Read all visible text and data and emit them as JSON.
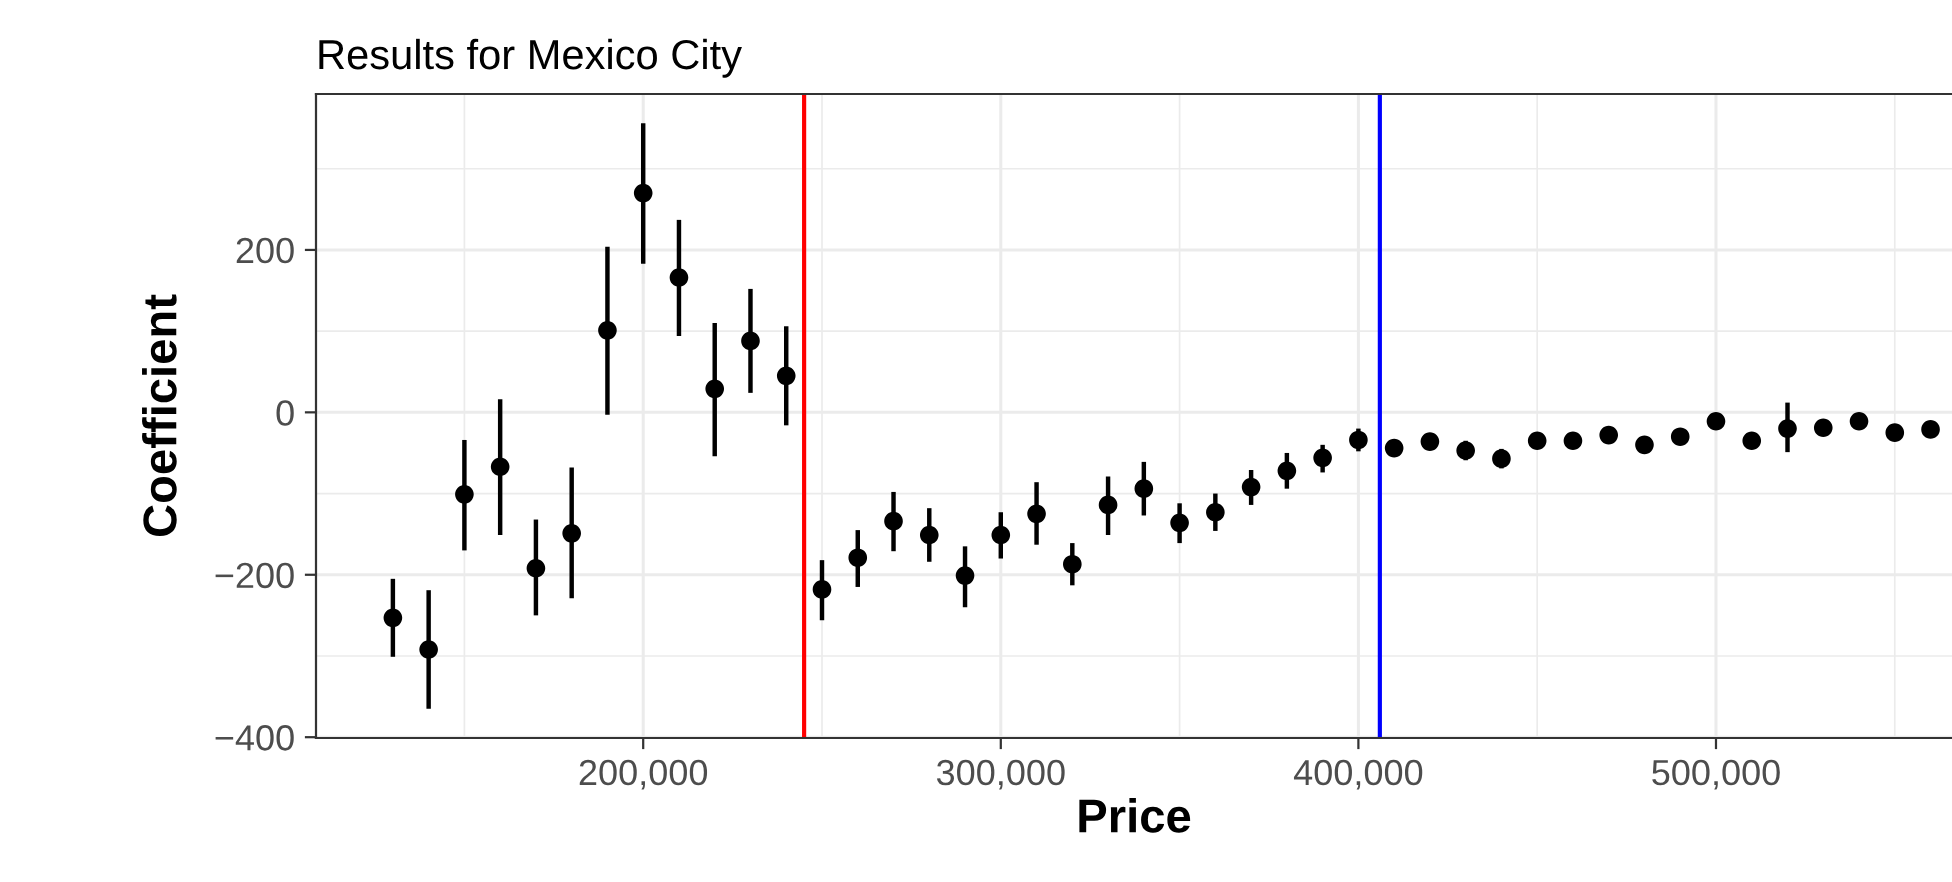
{
  "chart_data": {
    "type": "scatter",
    "title": "Results for Mexico City",
    "xlabel": "Price",
    "ylabel": "Coefficient",
    "x": [
      130000,
      140000,
      150000,
      160000,
      170000,
      180000,
      190000,
      200000,
      210000,
      220000,
      230000,
      240000,
      250000,
      260000,
      270000,
      280000,
      290000,
      300000,
      310000,
      320000,
      330000,
      340000,
      350000,
      360000,
      370000,
      380000,
      390000,
      400000,
      410000,
      420000,
      430000,
      440000,
      450000,
      460000,
      470000,
      480000,
      490000,
      500000,
      510000,
      520000,
      530000,
      540000,
      550000,
      560000
    ],
    "series": [
      {
        "color": "#000000",
        "values": [
          -253,
          -292,
          -101,
          -67,
          -192,
          -149,
          101,
          270,
          166,
          29,
          88,
          45,
          -218,
          -179,
          -134,
          -151,
          -201,
          -151,
          -125,
          -187,
          -114,
          -94,
          -136,
          -123,
          -92,
          -72,
          -56,
          -34,
          -44,
          -36,
          -47,
          -57,
          -35,
          -35,
          -28,
          -40,
          -30,
          -11,
          -35,
          -20,
          -19,
          -11,
          -25,
          -21
        ],
        "errors": [
          [
            -301,
            -205
          ],
          [
            -365,
            -219
          ],
          [
            -170,
            -34
          ],
          [
            -151,
            16
          ],
          [
            -250,
            -132
          ],
          [
            -229,
            -68
          ],
          [
            -3,
            204
          ],
          [
            183,
            356
          ],
          [
            94,
            237
          ],
          [
            -54,
            110
          ],
          [
            24,
            152
          ],
          [
            -16,
            106
          ],
          [
            -256,
            -182
          ],
          [
            -215,
            -145
          ],
          [
            -171,
            -98
          ],
          [
            -184,
            -118
          ],
          [
            -240,
            -165
          ],
          [
            -180,
            -123
          ],
          [
            -163,
            -86
          ],
          [
            -213,
            -161
          ],
          [
            -151,
            -79
          ],
          [
            -127,
            -61
          ],
          [
            -161,
            -112
          ],
          [
            -146,
            -100
          ],
          [
            -114,
            -71
          ],
          [
            -94,
            -50
          ],
          [
            -74,
            -40
          ],
          [
            -48,
            -20
          ],
          [
            -54,
            -34
          ],
          [
            -46,
            -26
          ],
          [
            -59,
            -35
          ],
          [
            -69,
            -45
          ],
          [
            -43,
            -27
          ],
          [
            -43,
            -27
          ],
          [
            -34,
            -22
          ],
          [
            -45,
            -35
          ],
          [
            -36,
            -24
          ],
          [
            -17,
            -5
          ],
          [
            -43,
            -27
          ],
          [
            -49,
            12
          ],
          [
            -24,
            -14
          ],
          [
            -16,
            -6
          ],
          [
            -29,
            -21
          ],
          [
            -25,
            -17
          ]
        ]
      }
    ],
    "marker": "circle",
    "xlim": [
      108500,
      566000
    ],
    "xticks": [
      {
        "value": 200000,
        "label": "200,000"
      },
      {
        "value": 300000,
        "label": "300,000"
      },
      {
        "value": 400000,
        "label": "400,000"
      },
      {
        "value": 500000,
        "label": "500,000"
      }
    ],
    "ylim": [
      -401,
      392
    ],
    "yticks": [
      {
        "value": -400,
        "label": "−400"
      },
      {
        "value": -200,
        "label": "−200"
      },
      0,
      200
    ],
    "grid": true,
    "ref_lines": [
      {
        "axis": "x",
        "value": 245000,
        "color": "#ff0000"
      },
      {
        "axis": "x",
        "value": 406000,
        "color": "#0000ff"
      }
    ]
  }
}
